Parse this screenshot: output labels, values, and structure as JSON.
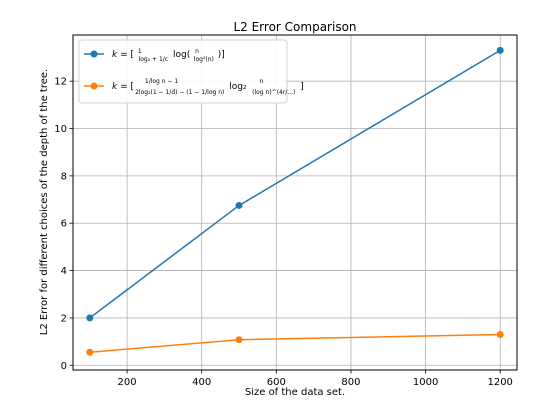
{
  "chart_data": {
    "type": "line",
    "title": "L2 Error Comparison",
    "xlabel": "Size of the data set.",
    "ylabel": "L2 Error for different choices of the depth of the tree.",
    "x": [
      100,
      500,
      1200
    ],
    "xlim": [
      55,
      1245
    ],
    "ylim": [
      -0.2,
      13.95
    ],
    "xticks": [
      200,
      400,
      600,
      800,
      1000,
      1200
    ],
    "yticks": [
      0,
      2,
      4,
      6,
      8,
      10,
      12
    ],
    "grid": true,
    "legend_position": "top-left",
    "series": [
      {
        "name": "k = [1/(log₂ + 1/c) · log(n/log²(n))]",
        "color": "#1f77b4",
        "values": [
          2.0,
          6.75,
          13.3
        ]
      },
      {
        "name": "k = [(1/log n − 1)/(2log₂(1 − 1/d) − (1 − 1/log n)) · log₂ n/(log n)^(4r/...)]",
        "color": "#ff7f0e",
        "values": [
          0.55,
          1.08,
          1.3
        ]
      }
    ]
  }
}
